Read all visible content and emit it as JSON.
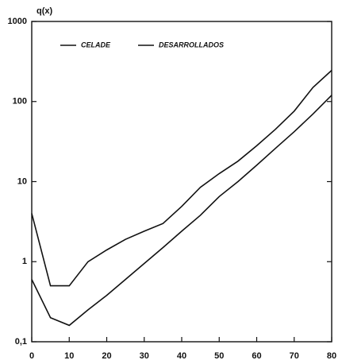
{
  "chart_data": {
    "type": "line",
    "y_label": "q(x)",
    "log_y": true,
    "x": [
      0,
      5,
      10,
      15,
      20,
      25,
      30,
      35,
      40,
      45,
      50,
      55,
      60,
      65,
      70,
      75,
      80
    ],
    "series": [
      {
        "name": "CELADE",
        "color": "#111111",
        "values": [
          4,
          0.5,
          0.5,
          1.0,
          1.4,
          1.9,
          2.4,
          3,
          4.9,
          8.5,
          12.6,
          18,
          28,
          45,
          76,
          150,
          245
        ]
      },
      {
        "name": "DESARROLLADOS",
        "color": "#111111",
        "values": [
          0.6,
          0.2,
          0.16,
          0.25,
          0.38,
          0.6,
          0.95,
          1.5,
          2.4,
          3.8,
          6.5,
          10,
          16,
          26,
          42,
          70,
          120
        ]
      }
    ],
    "xlim": [
      0,
      80
    ],
    "xticks": [
      0,
      10,
      20,
      30,
      40,
      50,
      60,
      70,
      80
    ],
    "ylim": [
      0.1,
      1000
    ],
    "yticks": [
      {
        "value": 0.1,
        "label": "0,1"
      },
      1,
      10,
      100,
      1000
    ]
  }
}
